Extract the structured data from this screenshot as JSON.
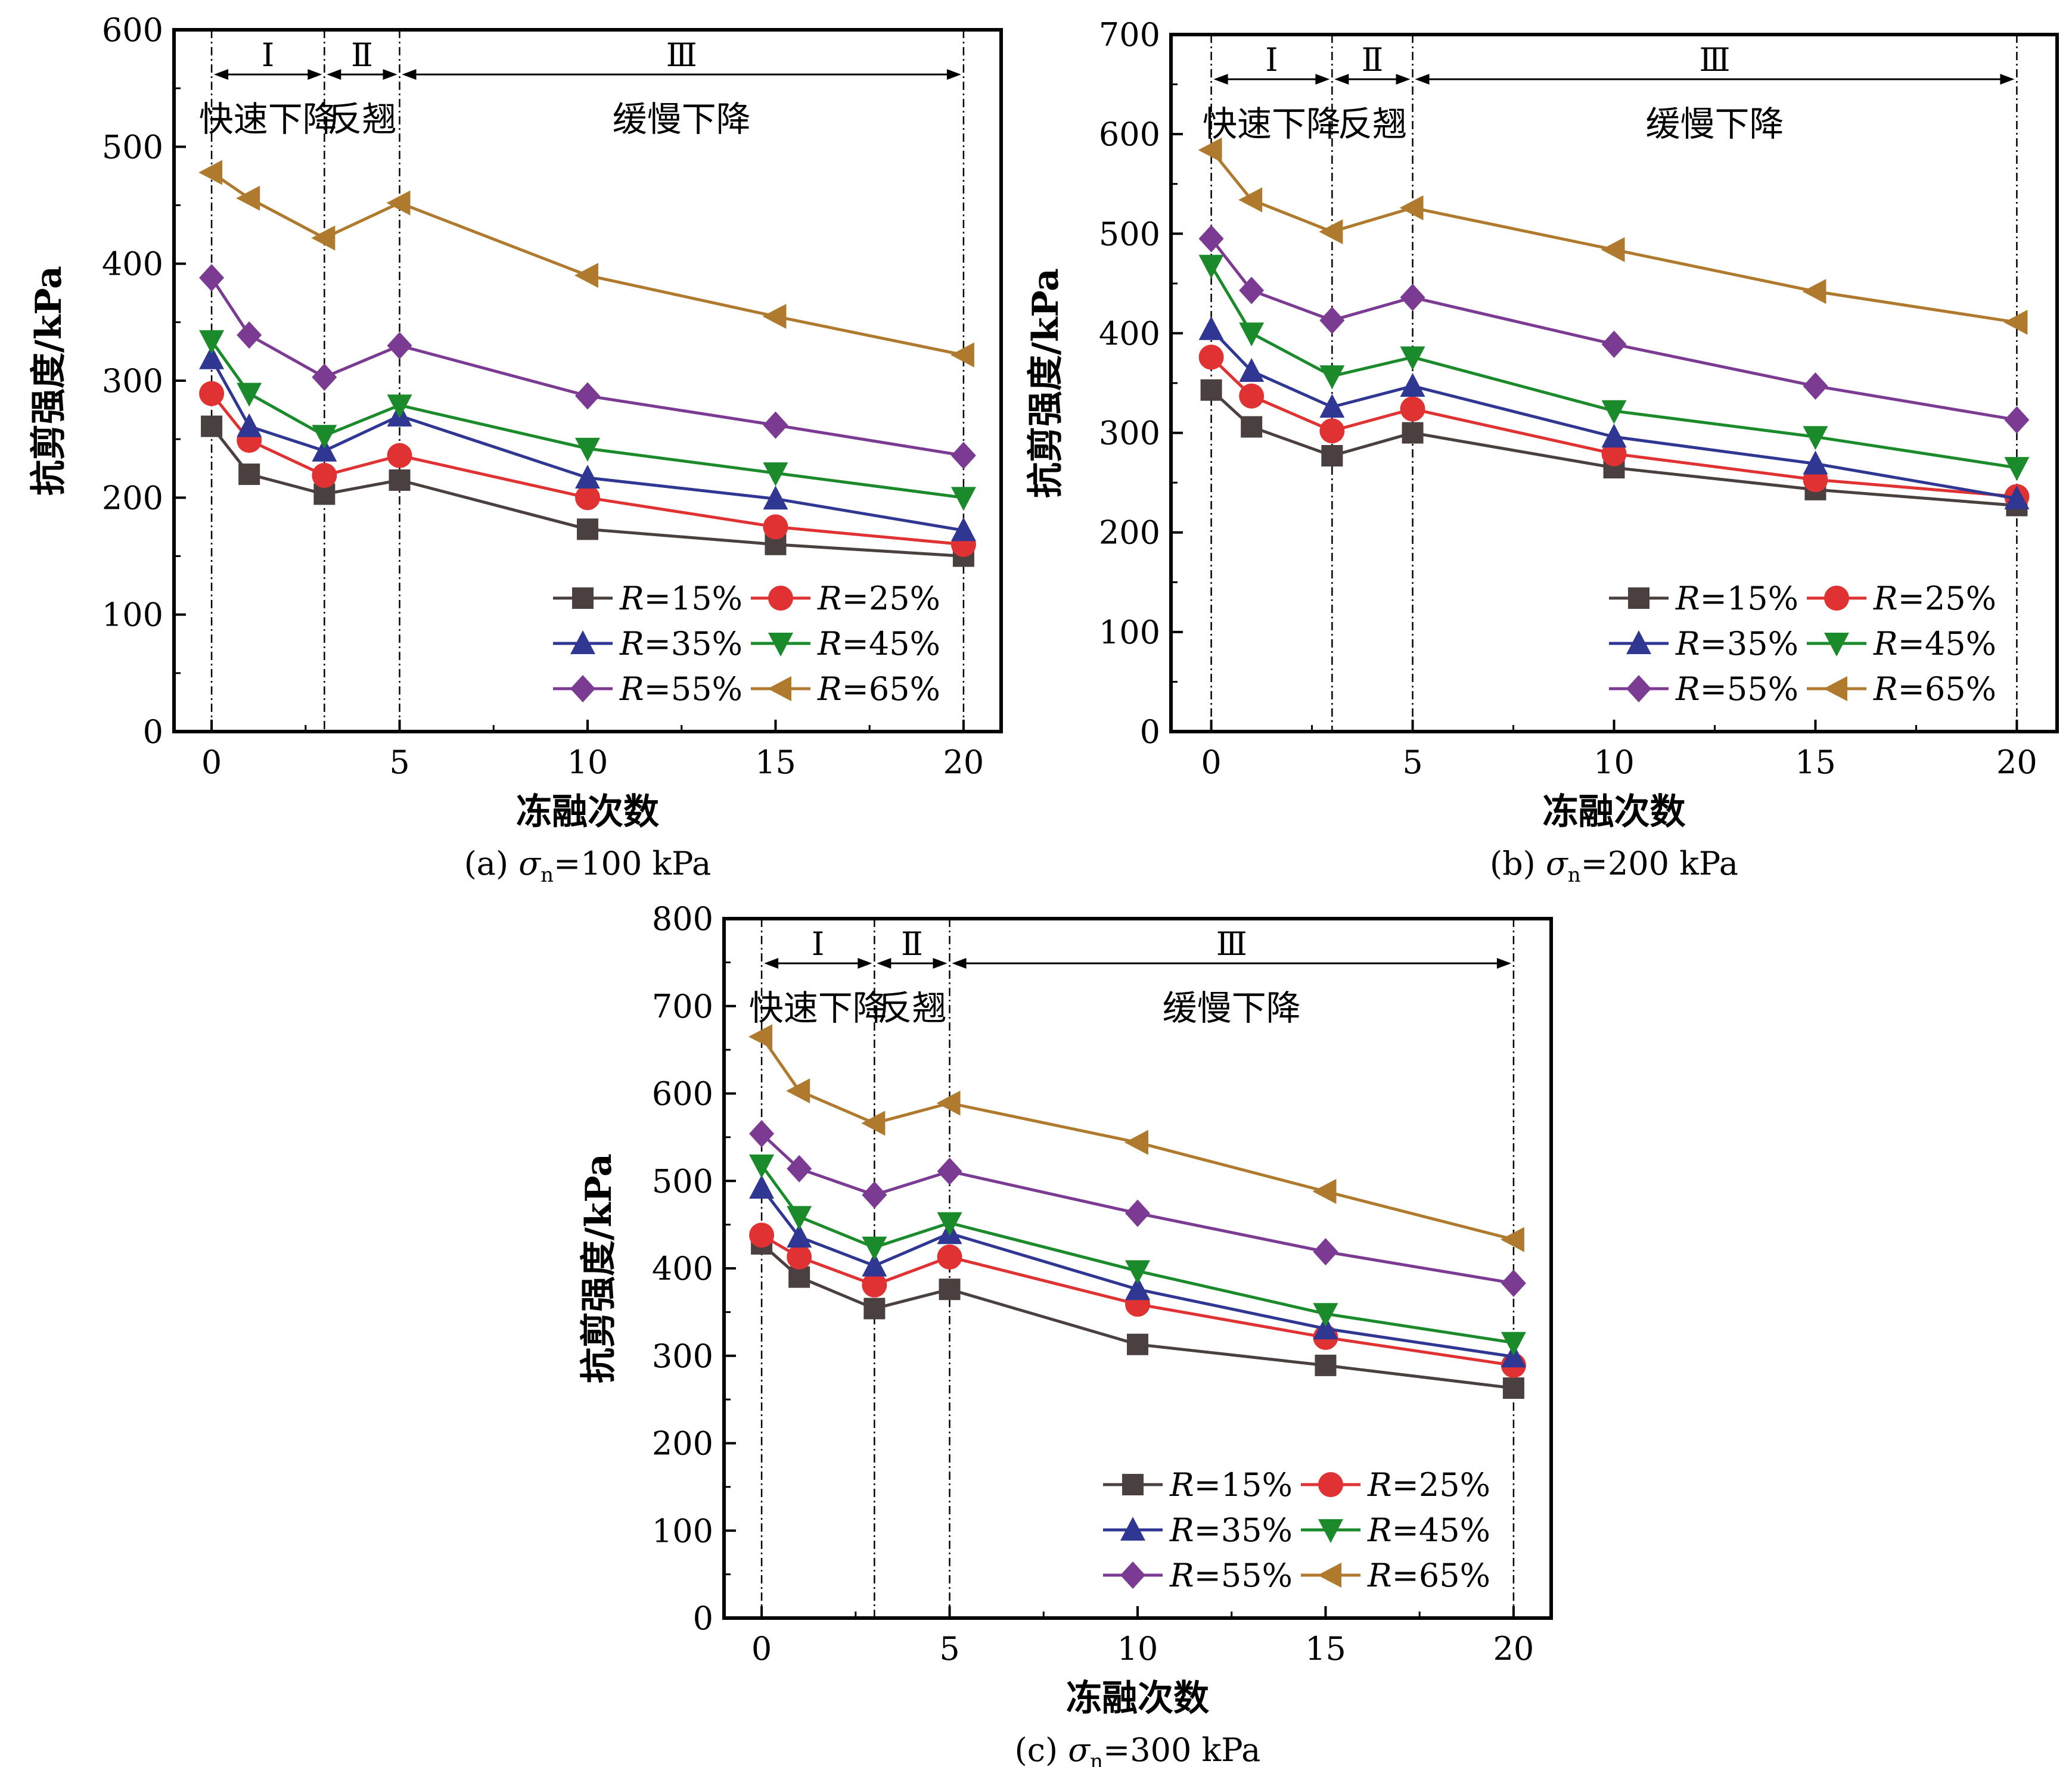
{
  "colors": {
    "R15": "#4a4040",
    "R25": "#e03232",
    "R35": "#2f3793",
    "R45": "#1a8a2a",
    "R55": "#7b3b93",
    "R65": "#b07a2e",
    "axis": "#000000"
  },
  "chart_data": [
    {
      "type": "line",
      "caption_prefix": "(a) ",
      "caption_symbol": "σ",
      "caption_sub": "n",
      "caption_value": "=100 kPa",
      "xlabel": "冻融次数",
      "ylabel": "抗剪强度/kPa",
      "xlim": [
        -1,
        21
      ],
      "ylim": [
        0,
        600
      ],
      "xticks": [
        "0",
        "5",
        "10",
        "15",
        "20"
      ],
      "yticks": [
        "0",
        "100",
        "200",
        "300",
        "400",
        "500",
        "600"
      ],
      "x": [
        0,
        1,
        3,
        5,
        10,
        15,
        20
      ],
      "stages": [
        {
          "numeral": "Ⅰ",
          "label": "快速下降",
          "from": 0,
          "to": 3
        },
        {
          "numeral": "Ⅱ",
          "label": "反翘",
          "from": 3,
          "to": 5
        },
        {
          "numeral": "Ⅲ",
          "label": "缓慢下降",
          "from": 5,
          "to": 20
        }
      ],
      "series": [
        {
          "name": "R=15%",
          "prefix": "R",
          "suffix": "=15%",
          "marker": "square",
          "color_key": "R15",
          "values": [
            261,
            220,
            203,
            215,
            173,
            160,
            150
          ]
        },
        {
          "name": "R=25%",
          "prefix": "R",
          "suffix": "=25%",
          "marker": "circle",
          "color_key": "R25",
          "values": [
            289,
            249,
            219,
            236,
            200,
            175,
            160
          ]
        },
        {
          "name": "R=35%",
          "prefix": "R",
          "suffix": "=35%",
          "marker": "triangle-up",
          "color_key": "R35",
          "values": [
            319,
            261,
            240,
            270,
            217,
            199,
            172
          ]
        },
        {
          "name": "R=45%",
          "prefix": "R",
          "suffix": "=45%",
          "marker": "triangle-down",
          "color_key": "R45",
          "values": [
            334,
            289,
            253,
            279,
            242,
            221,
            200
          ]
        },
        {
          "name": "R=55%",
          "prefix": "R",
          "suffix": "=55%",
          "marker": "diamond",
          "color_key": "R55",
          "values": [
            388,
            339,
            303,
            330,
            287,
            262,
            236
          ]
        },
        {
          "name": "R=65%",
          "prefix": "R",
          "suffix": "=65%",
          "marker": "triangle-left",
          "color_key": "R65",
          "values": [
            478,
            456,
            422,
            452,
            390,
            355,
            322
          ]
        }
      ],
      "grid": false,
      "legend": "bottom-right"
    },
    {
      "type": "line",
      "caption_prefix": "(b) ",
      "caption_symbol": "σ",
      "caption_sub": "n",
      "caption_value": "=200 kPa",
      "xlabel": "冻融次数",
      "ylabel": "抗剪强度/kPa",
      "xlim": [
        -1,
        21
      ],
      "ylim": [
        0,
        700
      ],
      "xticks": [
        "0",
        "5",
        "10",
        "15",
        "20"
      ],
      "yticks": [
        "0",
        "100",
        "200",
        "300",
        "400",
        "500",
        "600",
        "700"
      ],
      "x": [
        0,
        1,
        3,
        5,
        10,
        15,
        20
      ],
      "stages": [
        {
          "numeral": "Ⅰ",
          "label": "快速下降",
          "from": 0,
          "to": 3
        },
        {
          "numeral": "Ⅱ",
          "label": "反翘",
          "from": 3,
          "to": 5
        },
        {
          "numeral": "Ⅲ",
          "label": "缓慢下降",
          "from": 5,
          "to": 20
        }
      ],
      "series": [
        {
          "name": "R=15%",
          "prefix": "R",
          "suffix": "=15%",
          "marker": "square",
          "color_key": "R15",
          "values": [
            343,
            306,
            277,
            300,
            265,
            243,
            227
          ]
        },
        {
          "name": "R=25%",
          "prefix": "R",
          "suffix": "=25%",
          "marker": "circle",
          "color_key": "R25",
          "values": [
            376,
            337,
            302,
            324,
            279,
            253,
            236
          ]
        },
        {
          "name": "R=35%",
          "prefix": "R",
          "suffix": "=35%",
          "marker": "triangle-up",
          "color_key": "R35",
          "values": [
            404,
            362,
            326,
            347,
            296,
            269,
            234
          ]
        },
        {
          "name": "R=45%",
          "prefix": "R",
          "suffix": "=45%",
          "marker": "triangle-down",
          "color_key": "R45",
          "values": [
            468,
            400,
            357,
            376,
            322,
            296,
            265
          ]
        },
        {
          "name": "R=55%",
          "prefix": "R",
          "suffix": "=55%",
          "marker": "diamond",
          "color_key": "R55",
          "values": [
            495,
            443,
            413,
            436,
            389,
            347,
            313
          ]
        },
        {
          "name": "R=65%",
          "prefix": "R",
          "suffix": "=65%",
          "marker": "triangle-left",
          "color_key": "R65",
          "values": [
            584,
            534,
            502,
            526,
            484,
            442,
            411
          ]
        }
      ],
      "grid": false,
      "legend": "bottom-right"
    },
    {
      "type": "line",
      "caption_prefix": "(c) ",
      "caption_symbol": "σ",
      "caption_sub": "n",
      "caption_value": "=300 kPa",
      "xlabel": "冻融次数",
      "ylabel": "抗剪强度/kPa",
      "xlim": [
        -1,
        21
      ],
      "ylim": [
        0,
        800
      ],
      "xticks": [
        "0",
        "5",
        "10",
        "15",
        "20"
      ],
      "yticks": [
        "0",
        "100",
        "200",
        "300",
        "400",
        "500",
        "600",
        "700",
        "800"
      ],
      "x": [
        0,
        1,
        3,
        5,
        10,
        15,
        20
      ],
      "stages": [
        {
          "numeral": "Ⅰ",
          "label": "快速下降",
          "from": 0,
          "to": 3
        },
        {
          "numeral": "Ⅱ",
          "label": "反翘",
          "from": 3,
          "to": 5
        },
        {
          "numeral": "Ⅲ",
          "label": "缓慢下降",
          "from": 5,
          "to": 20
        }
      ],
      "series": [
        {
          "name": "R=15%",
          "prefix": "R",
          "suffix": "=15%",
          "marker": "square",
          "color_key": "R15",
          "values": [
            428,
            390,
            354,
            376,
            313,
            289,
            263
          ]
        },
        {
          "name": "R=25%",
          "prefix": "R",
          "suffix": "=25%",
          "marker": "circle",
          "color_key": "R25",
          "values": [
            438,
            413,
            381,
            413,
            359,
            321,
            289
          ]
        },
        {
          "name": "R=35%",
          "prefix": "R",
          "suffix": "=35%",
          "marker": "triangle-up",
          "color_key": "R35",
          "values": [
            492,
            436,
            403,
            440,
            376,
            331,
            299
          ]
        },
        {
          "name": "R=45%",
          "prefix": "R",
          "suffix": "=45%",
          "marker": "triangle-down",
          "color_key": "R45",
          "values": [
            518,
            459,
            424,
            452,
            397,
            348,
            315
          ]
        },
        {
          "name": "R=55%",
          "prefix": "R",
          "suffix": "=55%",
          "marker": "diamond",
          "color_key": "R55",
          "values": [
            554,
            514,
            484,
            511,
            463,
            419,
            383
          ]
        },
        {
          "name": "R=65%",
          "prefix": "R",
          "suffix": "=65%",
          "marker": "triangle-left",
          "color_key": "R65",
          "values": [
            665,
            603,
            566,
            589,
            544,
            488,
            433
          ]
        }
      ],
      "grid": false,
      "legend": "bottom-right"
    }
  ]
}
